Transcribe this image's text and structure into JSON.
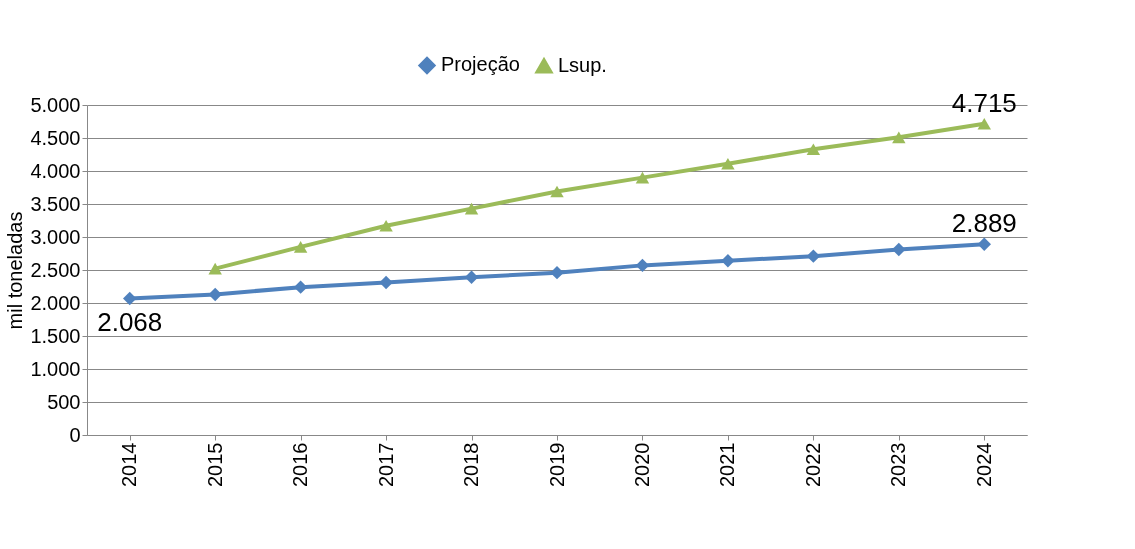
{
  "chart_data": {
    "type": "line",
    "ylabel": "mil toneladas",
    "categories": [
      "2014",
      "2015",
      "2016",
      "2017",
      "2018",
      "2019",
      "2020",
      "2021",
      "2022",
      "2023",
      "2024"
    ],
    "series": [
      {
        "name": "Projeção",
        "color": "#4f81bd",
        "marker": "diamond",
        "values": [
          2068,
          2130,
          2240,
          2310,
          2390,
          2460,
          2570,
          2640,
          2710,
          2810,
          2889
        ],
        "value_labels": [
          "2.068",
          null,
          null,
          null,
          null,
          null,
          null,
          null,
          null,
          null,
          "2.889"
        ]
      },
      {
        "name": "Lsup.",
        "color": "#9bbb59",
        "marker": "triangle",
        "values": [
          null,
          2520,
          2850,
          3170,
          3430,
          3690,
          3900,
          4110,
          4330,
          4510,
          4715
        ],
        "value_labels": [
          null,
          null,
          null,
          null,
          null,
          null,
          null,
          null,
          null,
          null,
          "4.715"
        ]
      }
    ],
    "ylim": [
      0,
      5000
    ],
    "yticks": [
      0,
      500,
      {
        "value": 1000,
        "label": "1.000"
      },
      {
        "value": 1500,
        "label": "1.500"
      },
      {
        "value": 2000,
        "label": "2.000"
      },
      {
        "value": 2500,
        "label": "2.500"
      },
      {
        "value": 3000,
        "label": "3.000"
      },
      {
        "value": 3500,
        "label": "3.500"
      },
      {
        "value": 4000,
        "label": "4.000"
      },
      {
        "value": 4500,
        "label": "4.500"
      },
      {
        "value": 5000,
        "label": "5.000"
      }
    ],
    "grid": "y",
    "legend": "top",
    "line_style": "solid"
  }
}
